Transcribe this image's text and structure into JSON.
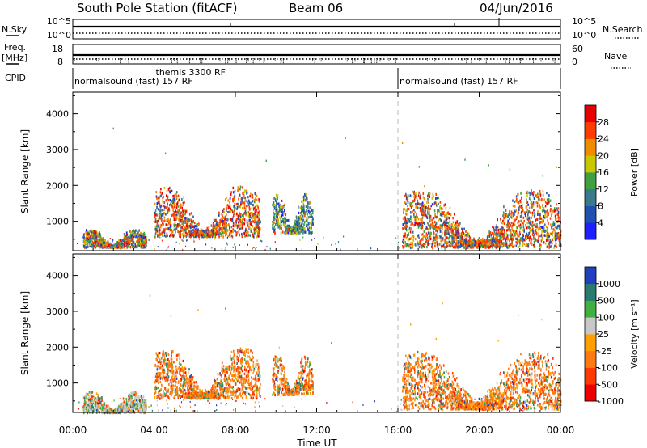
{
  "header": {
    "station": "South Pole Station (fitACF)",
    "beam": "Beam 06",
    "date": "04/Jun/2016"
  },
  "summary": {
    "left_labels": {
      "nsky": "N.Sky",
      "freq_line1": "Freq.",
      "freq_line2": "[MHz]",
      "cpid": "CPID"
    },
    "right_labels": {
      "nsearch": "N.Search",
      "nave": "Nave"
    },
    "noise_ticks_left": [
      "10^5",
      "10^0"
    ],
    "noise_ticks_right": [
      "10^5",
      "10^0"
    ],
    "freq_ticks": [
      "18",
      "8"
    ],
    "nave_ticks": [
      "60",
      "0"
    ],
    "cpid_segments": [
      {
        "label": "normalsound (fast) 157 RF",
        "start_h": 0,
        "end_h": 4
      },
      {
        "label": "themis 3300 RF",
        "start_h": 4,
        "end_h": 16
      },
      {
        "label": "normalsound (fast) 157 RF",
        "start_h": 16,
        "end_h": 24
      }
    ]
  },
  "colors": {
    "power": [
      "#2020ff",
      "#2050b0",
      "#3a7a8a",
      "#40a040",
      "#c8c800",
      "#f08c00",
      "#ff3c00",
      "#e80000"
    ],
    "velocity": [
      "#ee0000",
      "#ff3a00",
      "#ff7a10",
      "#ffa000",
      "#c8c8c8",
      "#40b040",
      "#2a7a70",
      "#2040c0"
    ]
  },
  "chart_data": [
    {
      "type": "heatmap",
      "title": "",
      "xlabel": "",
      "ylabel": "Slant Range [km]",
      "xlim": [
        0,
        24
      ],
      "ylim": [
        180,
        4600
      ],
      "xticks": [
        "00:00",
        "04:00",
        "08:00",
        "12:00",
        "16:00",
        "20:00",
        "00:00"
      ],
      "yticks": [
        1000,
        2000,
        3000,
        4000
      ],
      "colorbar": {
        "label": "Power [dB]",
        "ticks": [
          4,
          8,
          12,
          16,
          20,
          24,
          28
        ],
        "range": [
          0,
          30
        ]
      },
      "regions": [
        {
          "x": [
            0.5,
            3.6
          ],
          "y": [
            300,
            800
          ],
          "level": "mixed-low-mid"
        },
        {
          "x": [
            4.0,
            9.2
          ],
          "y": [
            600,
            2000
          ],
          "level": "high"
        },
        {
          "x": [
            9.8,
            11.8
          ],
          "y": [
            700,
            1800
          ],
          "level": "mid"
        },
        {
          "x": [
            16.2,
            24.0
          ],
          "y": [
            300,
            1900
          ],
          "level": "high"
        }
      ]
    },
    {
      "type": "heatmap",
      "title": "",
      "xlabel": "Time UT",
      "ylabel": "Slant Range [km]",
      "xlim": [
        0,
        24
      ],
      "ylim": [
        180,
        4600
      ],
      "xticks": [
        "00:00",
        "04:00",
        "08:00",
        "12:00",
        "16:00",
        "20:00",
        "00:00"
      ],
      "yticks": [
        1000,
        2000,
        3000,
        4000
      ],
      "colorbar": {
        "label": "Velocity [m s⁻¹]",
        "ticks": [
          1000,
          500,
          100,
          25,
          -25,
          -100,
          -500,
          -1000
        ]
      },
      "regions": [
        {
          "x": [
            0.5,
            3.6
          ],
          "y": [
            200,
            800
          ],
          "level": "near-zero"
        },
        {
          "x": [
            4.0,
            9.2
          ],
          "y": [
            600,
            2000
          ],
          "level": "negative-100"
        },
        {
          "x": [
            9.8,
            11.8
          ],
          "y": [
            700,
            1800
          ],
          "level": "negative-100"
        },
        {
          "x": [
            16.2,
            24.0
          ],
          "y": [
            300,
            1900
          ],
          "level": "negative-100"
        }
      ]
    }
  ]
}
